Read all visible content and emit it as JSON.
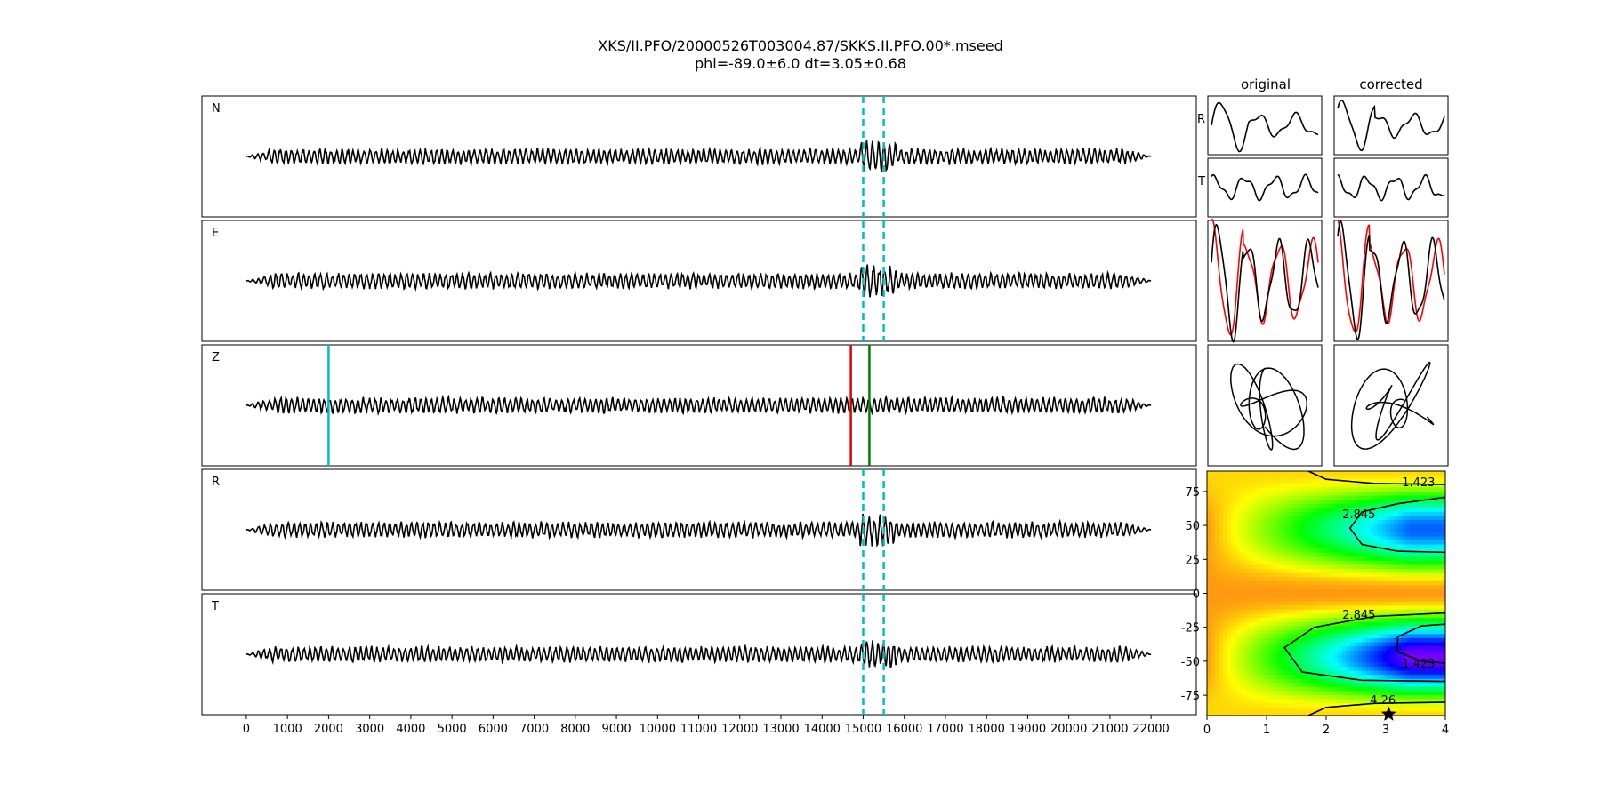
{
  "figure": {
    "title": "XKS/II.PFO/20000526T003004.87/SKKS.II.PFO.00*.mseed",
    "subtitle": "phi=-89.0±6.0 dt=3.05±0.68"
  },
  "chart_data": [
    {
      "type": "line",
      "panel": "waveforms",
      "traces": [
        "N",
        "E",
        "Z",
        "R",
        "T"
      ],
      "x_ticks": [
        0,
        1000,
        2000,
        3000,
        4000,
        5000,
        6000,
        7000,
        8000,
        9000,
        10000,
        11000,
        12000,
        13000,
        14000,
        15000,
        16000,
        17000,
        18000,
        19000,
        20000,
        21000,
        22000
      ],
      "xlim": [
        -1080,
        23100
      ],
      "trace_extent": [
        0,
        22000
      ],
      "window_markers": {
        "color": "#00bfbf",
        "style": "dashed",
        "x": [
          15000,
          15500
        ],
        "traces": [
          "N",
          "E",
          "R",
          "T"
        ]
      },
      "phase_markers": [
        {
          "trace": "Z",
          "x": 2000,
          "color": "#00bfbf"
        },
        {
          "trace": "Z",
          "x": 14700,
          "color": "#e00000"
        },
        {
          "trace": "Z",
          "x": 15150,
          "color": "#008000"
        }
      ]
    },
    {
      "type": "line",
      "panel": "particle-waveforms",
      "column_titles": [
        "original",
        "corrected"
      ],
      "row_labels": [
        "R",
        "T"
      ],
      "overlay_colors": [
        "#000000",
        "#ff0000"
      ]
    },
    {
      "type": "heatmap",
      "panel": "error-surface",
      "colormap": "gist_rainbow",
      "xlim": [
        0,
        4
      ],
      "ylim": [
        -90,
        90
      ],
      "x_ticks": [
        0,
        1,
        2,
        3,
        4
      ],
      "y_ticks": [
        -75,
        -50,
        -25,
        0,
        25,
        50,
        75
      ],
      "contour_labels": [
        "1.423",
        "2.845",
        "2.845",
        "1.423",
        "4.26"
      ],
      "best_fit": {
        "dt": 3.05,
        "phi": -89.0,
        "marker": "star"
      }
    }
  ]
}
